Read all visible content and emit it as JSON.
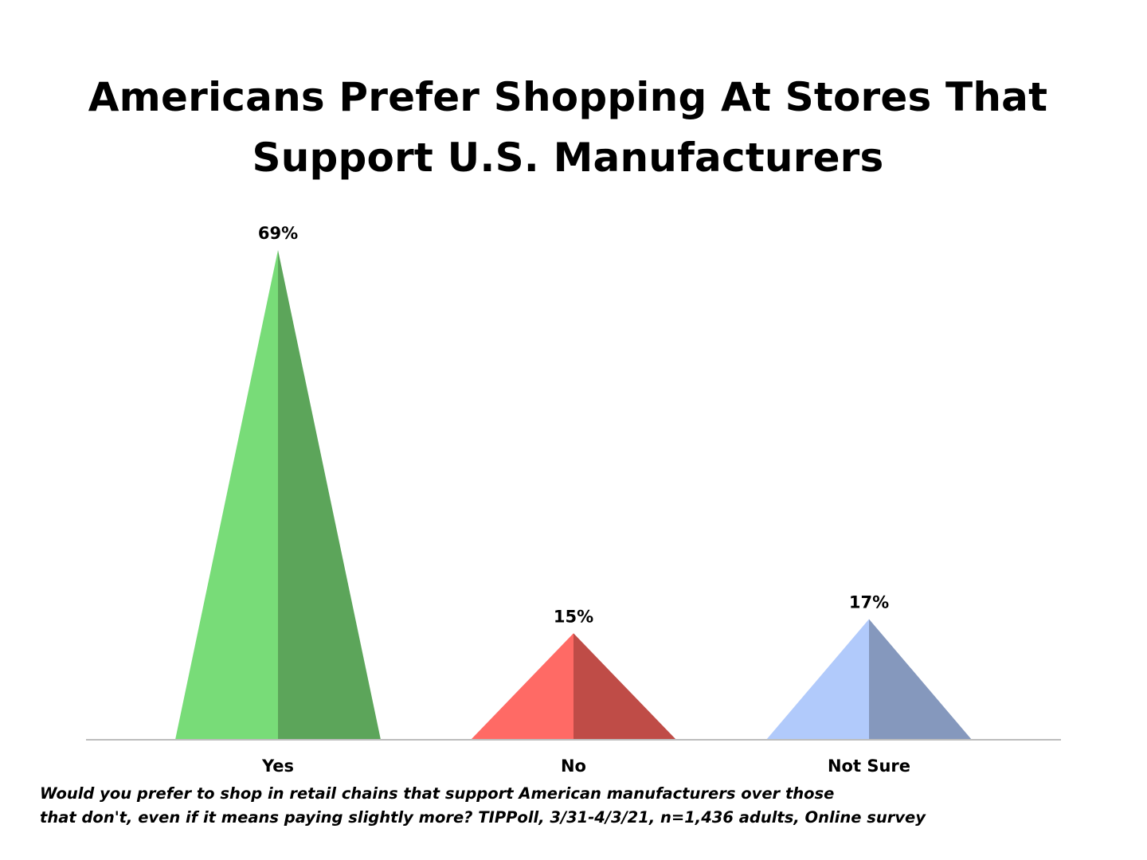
{
  "title_lines": [
    "Americans Prefer Shopping At Stores That",
    "Support U.S. Manufacturers"
  ],
  "caption_lines": [
    "Would you prefer to shop in retail chains that support American manufacturers over those",
    "that don't, even if it means paying slightly more? TIPPoll, 3/31-4/3/21, n=1,436 adults, Online survey"
  ],
  "chart_data": {
    "type": "bar",
    "title": "Americans Prefer Shopping At Stores That Support U.S. Manufacturers",
    "xlabel": "",
    "ylabel": "",
    "categories": [
      "Yes",
      "No",
      "Not Sure"
    ],
    "values": [
      69,
      15,
      17
    ],
    "data_labels": [
      "69%",
      "15%",
      "17%"
    ],
    "ylim": [
      0,
      70
    ],
    "grid": false,
    "legend": "none",
    "bar_shape": "pyramid",
    "colors": [
      {
        "light": "#78DC78",
        "dark": "#5CA55A"
      },
      {
        "light": "#FF6A65",
        "dark": "#BF4C47"
      },
      {
        "light": "#B1CAFB",
        "dark": "#8598BD"
      }
    ],
    "axis_color": "#BDBDBD"
  }
}
